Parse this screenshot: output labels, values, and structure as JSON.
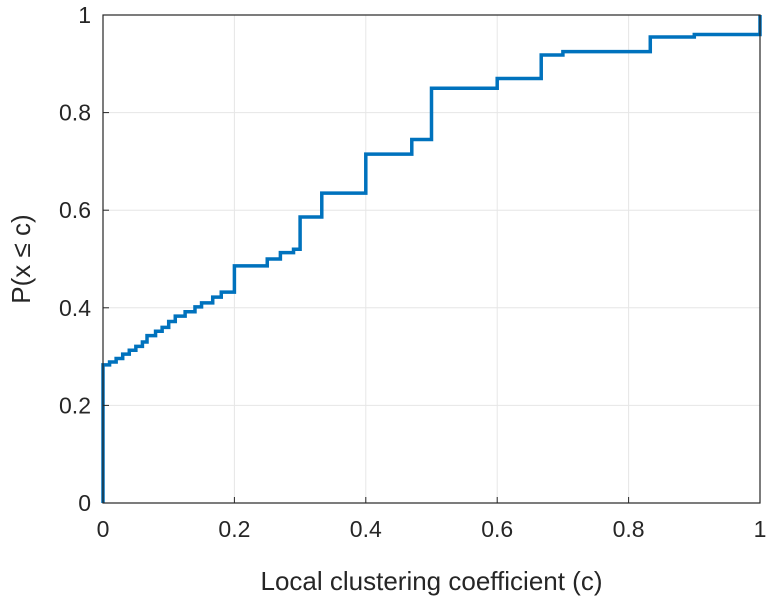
{
  "chart_data": {
    "type": "line",
    "title": "",
    "xlabel": "Local clustering coefficient (c)",
    "ylabel": "P(x ≤ c)",
    "xlim": [
      0,
      1
    ],
    "ylim": [
      0,
      1
    ],
    "xticks": [
      0,
      0.2,
      0.4,
      0.6,
      0.8,
      1
    ],
    "yticks": [
      0,
      0.2,
      0.4,
      0.6,
      0.8,
      1
    ],
    "xtick_labels": [
      "0",
      "0.2",
      "0.4",
      "0.6",
      "0.8",
      "1"
    ],
    "ytick_labels": [
      "0",
      "0.2",
      "0.4",
      "0.6",
      "0.8",
      "1"
    ],
    "grid": true,
    "legend": "none",
    "color": "#0072BD",
    "series": [
      {
        "style": "stairs",
        "x": [
          0,
          0,
          0.01,
          0.02,
          0.03,
          0.04,
          0.05,
          0.06,
          0.067,
          0.08,
          0.09,
          0.1,
          0.11,
          0.125,
          0.14,
          0.15,
          0.167,
          0.18,
          0.2,
          0.2,
          0.25,
          0.27,
          0.29,
          0.3,
          0.3,
          0.333,
          0.333,
          0.4,
          0.4,
          0.47,
          0.47,
          0.5,
          0.5,
          0.6,
          0.6,
          0.667,
          0.667,
          0.7,
          0.833,
          0.833,
          0.9,
          1.0,
          1.0
        ],
        "y": [
          0,
          0.283,
          0.289,
          0.296,
          0.305,
          0.313,
          0.321,
          0.33,
          0.343,
          0.352,
          0.36,
          0.372,
          0.383,
          0.392,
          0.402,
          0.41,
          0.422,
          0.432,
          0.44,
          0.486,
          0.5,
          0.513,
          0.52,
          0.528,
          0.586,
          0.588,
          0.635,
          0.643,
          0.715,
          0.722,
          0.745,
          0.748,
          0.85,
          0.86,
          0.87,
          0.872,
          0.918,
          0.925,
          0.93,
          0.955,
          0.96,
          0.967,
          1.0
        ]
      }
    ]
  }
}
